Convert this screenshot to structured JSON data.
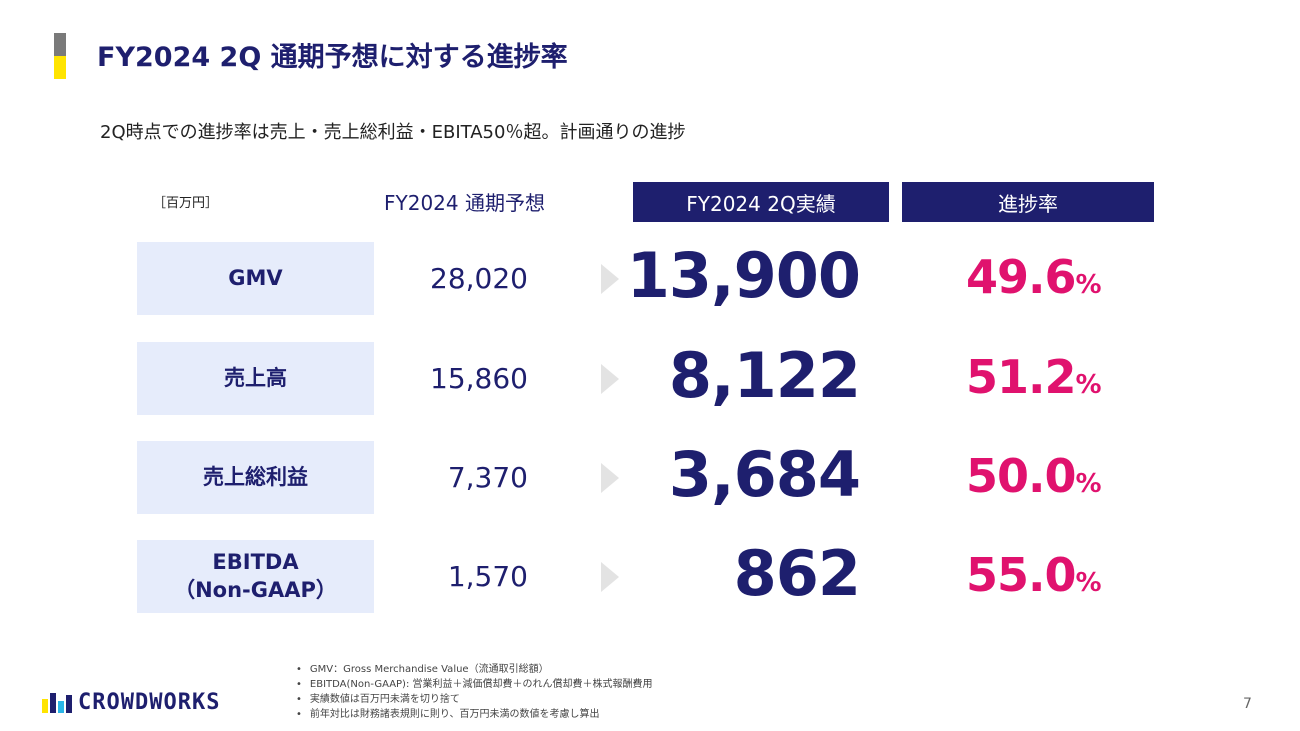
{
  "title": "FY2024 2Q 通期予想に対する進捗率",
  "subtitle": "2Q時点での進捗率は売上・売上総利益・EBITA50％超。計画通りの進捗",
  "table": {
    "unit": "［百万円］",
    "header_forecast": "FY2024 通期予想",
    "header_actual": "FY2024 2Q実績",
    "header_rate": "進捗率",
    "rows": [
      {
        "label": "GMV",
        "forecast": "28,020",
        "actual": "13,900",
        "rate": "49.6",
        "pct": "%"
      },
      {
        "label": "売上高",
        "forecast": "15,860",
        "actual": "8,122",
        "rate": "51.2",
        "pct": "%"
      },
      {
        "label": "売上総利益",
        "forecast": "7,370",
        "actual": "3,684",
        "rate": "50.0",
        "pct": "%"
      },
      {
        "label_line1": "EBITDA",
        "label_line2": "（Non-GAAP）",
        "forecast": "1,570",
        "actual": "862",
        "rate": "55.0",
        "pct": "%"
      }
    ]
  },
  "notes": [
    "GMV：Gross Merchandise Value（流通取引総額）",
    "EBITDA(Non-GAAP): 営業利益＋減価償却費＋のれん償却費＋株式報酬費用",
    "実績数値は百万円未満を切り捨て",
    "前年対比は財務諸表規則に則り、百万円未満の数値を考慮し算出"
  ],
  "logo": {
    "text": "CROWDWORKS"
  },
  "page_number": "7",
  "colors": {
    "navy": "#1e1f6e",
    "magenta": "#e0126e",
    "label_bg": "#e6ecfb",
    "accent_yellow": "#ffe400"
  }
}
